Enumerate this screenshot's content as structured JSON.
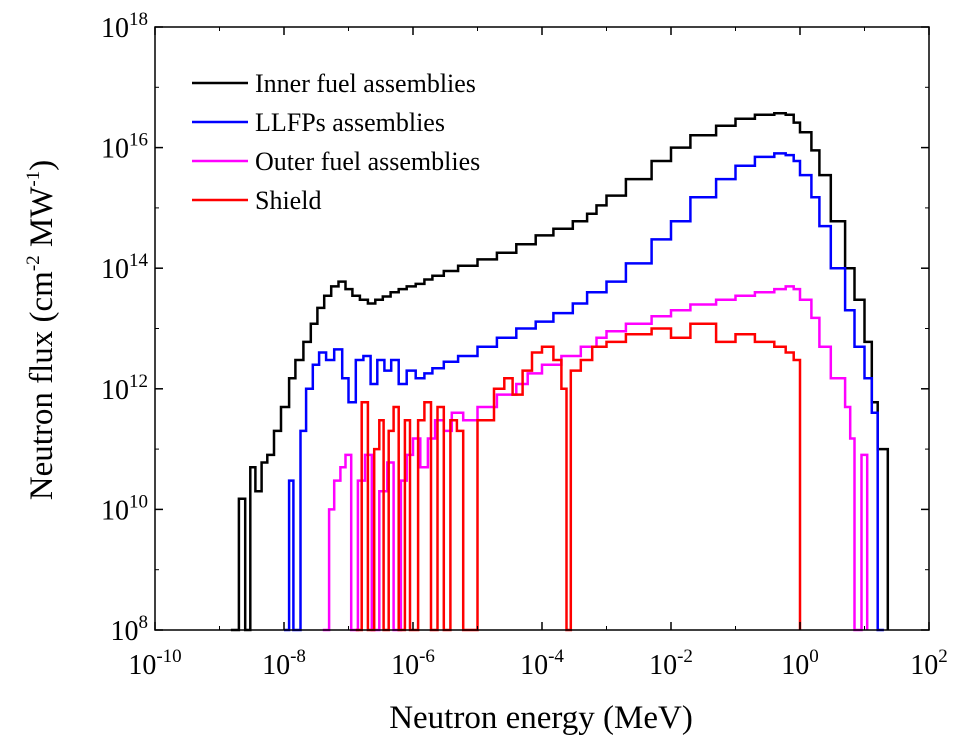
{
  "chart_data": {
    "type": "line",
    "xlabel": "Neutron energy (MeV)",
    "ylabel": "Neutron flux (cm⁻² MW⁻¹)",
    "ylabel_parts": {
      "a": "Neutron flux (cm",
      "exp1": "-2",
      "b": " MW",
      "exp2": "-1",
      "c": ")"
    },
    "xscale": "log",
    "yscale": "log",
    "xlim": [
      1e-10,
      100
    ],
    "ylim": [
      100000000.0,
      1e+18
    ],
    "x_ticks": [
      {
        "base": "10",
        "exp": "-10",
        "value": 1e-10
      },
      {
        "base": "10",
        "exp": "-8",
        "value": 1e-08
      },
      {
        "base": "10",
        "exp": "-6",
        "value": 1e-06
      },
      {
        "base": "10",
        "exp": "-4",
        "value": 0.0001
      },
      {
        "base": "10",
        "exp": "-2",
        "value": 0.01
      },
      {
        "base": "10",
        "exp": "0",
        "value": 1
      },
      {
        "base": "10",
        "exp": "2",
        "value": 100
      }
    ],
    "y_ticks": [
      {
        "base": "10",
        "exp": "8",
        "value": 100000000.0
      },
      {
        "base": "10",
        "exp": "10",
        "value": 10000000000.0
      },
      {
        "base": "10",
        "exp": "12",
        "value": 1000000000000.0
      },
      {
        "base": "10",
        "exp": "14",
        "value": 100000000000000.0
      },
      {
        "base": "10",
        "exp": "16",
        "value": 1e+16
      },
      {
        "base": "10",
        "exp": "18",
        "value": 1e+18
      }
    ],
    "grid": false,
    "legend_position": "top-left",
    "series": [
      {
        "name": "Inner fuel assemblies",
        "color": "#000000",
        "x": [
          1.5e-09,
          2e-09,
          2.5e-09,
          3e-09,
          3.6e-09,
          4.5e-09,
          5.5e-09,
          7e-09,
          9e-09,
          1.2e-08,
          1.5e-08,
          2e-08,
          2.6e-08,
          3.3e-08,
          4.2e-08,
          5.4e-08,
          7e-08,
          9e-08,
          1.15e-07,
          1.5e-07,
          2e-07,
          2.6e-07,
          3.4e-07,
          4.5e-07,
          6e-07,
          8e-07,
          1.1e-06,
          1.5e-06,
          2e-06,
          3e-06,
          5e-06,
          1e-05,
          2e-05,
          4e-05,
          8e-05,
          0.00015,
          0.0003,
          0.0005,
          0.0007,
          0.001,
          0.002,
          0.005,
          0.01,
          0.02,
          0.05,
          0.1,
          0.2,
          0.4,
          0.6,
          0.8,
          1,
          1.5,
          2,
          3,
          5,
          7,
          10,
          13,
          16,
          20,
          23
        ],
        "y": [
          100000000.0,
          15000000000.0,
          100000000.0,
          50000000000.0,
          20000000000.0,
          60000000000.0,
          80000000000.0,
          200000000000.0,
          500000000000.0,
          1500000000000.0,
          3000000000000.0,
          6000000000000.0,
          12000000000000.0,
          22000000000000.0,
          35000000000000.0,
          50000000000000.0,
          60000000000000.0,
          45000000000000.0,
          35000000000000.0,
          30000000000000.0,
          26000000000000.0,
          30000000000000.0,
          34000000000000.0,
          40000000000000.0,
          45000000000000.0,
          50000000000000.0,
          55000000000000.0,
          65000000000000.0,
          75000000000000.0,
          90000000000000.0,
          110000000000000.0,
          140000000000000.0,
          180000000000000.0,
          250000000000000.0,
          350000000000000.0,
          450000000000000.0,
          600000000000000.0,
          800000000000000.0,
          1100000000000000.0,
          1600000000000000.0,
          3000000000000000.0,
          6000000000000000.0,
          1e+16,
          1.6e+16,
          2.3e+16,
          3e+16,
          3.5e+16,
          3.7e+16,
          3.5e+16,
          2.6e+16,
          1.8e+16,
          9000000000000000.0,
          3500000000000000.0,
          600000000000000.0,
          100000000000000.0,
          30000000000000.0,
          6000000000000.0,
          600000000000.0,
          100000000000.0,
          100000000000.0,
          100000000.0
        ]
      },
      {
        "name": "LLFPs assemblies",
        "color": "#0000ff",
        "x": [
          1e-08,
          1.2e-08,
          1.4e-08,
          1.8e-08,
          2.2e-08,
          2.8e-08,
          3.5e-08,
          4.5e-08,
          6e-08,
          8e-08,
          1e-07,
          1.3e-07,
          1.7e-07,
          2.2e-07,
          2.8e-07,
          3.6e-07,
          4.6e-07,
          6e-07,
          8e-07,
          1.1e-06,
          1.5e-06,
          2e-06,
          3e-06,
          5e-06,
          1e-05,
          2e-05,
          4e-05,
          8e-05,
          0.00015,
          0.0003,
          0.0005,
          0.001,
          0.002,
          0.005,
          0.01,
          0.02,
          0.05,
          0.1,
          0.2,
          0.4,
          0.6,
          0.8,
          1,
          1.5,
          2,
          3,
          5,
          7,
          10,
          13,
          16,
          20
        ],
        "y": [
          100000000.0,
          30000000000.0,
          100000000.0,
          200000000000.0,
          1000000000000.0,
          2500000000000.0,
          4000000000000.0,
          3000000000000.0,
          4500000000000.0,
          1500000000000.0,
          600000000000.0,
          3000000000000.0,
          3500000000000.0,
          1200000000000.0,
          3000000000000.0,
          2000000000000.0,
          3000000000000.0,
          1200000000000.0,
          2000000000000.0,
          1500000000000.0,
          1800000000000.0,
          2200000000000.0,
          2800000000000.0,
          3500000000000.0,
          5000000000000.0,
          7000000000000.0,
          10000000000000.0,
          13000000000000.0,
          18000000000000.0,
          26000000000000.0,
          40000000000000.0,
          60000000000000.0,
          120000000000000.0,
          300000000000000.0,
          600000000000000.0,
          1500000000000000.0,
          3000000000000000.0,
          5000000000000000.0,
          7000000000000000.0,
          8000000000000000.0,
          7500000000000000.0,
          6000000000000000.0,
          3500000000000000.0,
          1500000000000000.0,
          500000000000000.0,
          100000000000000.0,
          20000000000000.0,
          5000000000000.0,
          1500000000000.0,
          400000000000.0,
          100000000.0,
          100000000.0
        ]
      },
      {
        "name": "Outer fuel assemblies",
        "color": "#ff00ff",
        "x": [
          4e-08,
          5e-08,
          6e-08,
          7.5e-08,
          9e-08,
          1.1e-07,
          1.4e-07,
          1.8e-07,
          2.3e-07,
          3e-07,
          4e-07,
          5e-07,
          6.5e-07,
          8e-07,
          1e-06,
          1.3e-06,
          1.7e-06,
          2.2e-06,
          3e-06,
          4e-06,
          6e-06,
          1e-05,
          2e-05,
          4e-05,
          6e-05,
          0.0001,
          0.0002,
          0.0004,
          0.0007,
          0.001,
          0.002,
          0.005,
          0.01,
          0.02,
          0.05,
          0.1,
          0.2,
          0.4,
          0.6,
          0.8,
          1,
          1.5,
          2,
          3,
          5,
          6,
          7,
          9,
          11
        ],
        "y": [
          100000000.0,
          10000000000.0,
          30000000000.0,
          50000000000.0,
          80000000000.0,
          100000000.0,
          30000000000.0,
          80000000000.0,
          100000000.0,
          20000000000.0,
          60000000000.0,
          100000000.0,
          30000000000.0,
          80000000000.0,
          150000000000.0,
          50000000000.0,
          150000000000.0,
          300000000000.0,
          200000000000.0,
          400000000000.0,
          300000000000.0,
          500000000000.0,
          800000000000.0,
          1200000000000.0,
          1800000000000.0,
          2500000000000.0,
          3500000000000.0,
          5000000000000.0,
          7000000000000.0,
          9000000000000.0,
          12000000000000.0,
          16000000000000.0,
          20000000000000.0,
          25000000000000.0,
          30000000000000.0,
          35000000000000.0,
          40000000000000.0,
          45000000000000.0,
          50000000000000.0,
          45000000000000.0,
          30000000000000.0,
          15000000000000.0,
          5000000000000.0,
          1500000000000.0,
          500000000000.0,
          150000000000.0,
          100000000.0,
          80000000000.0,
          100000000.0
        ]
      },
      {
        "name": "Shield",
        "color": "#ff0000",
        "x": [
          1.3e-07,
          1.6e-07,
          2e-07,
          2.5e-07,
          3e-07,
          3.5e-07,
          4.2e-07,
          5e-07,
          6e-07,
          7.5e-07,
          9e-07,
          1.2e-06,
          1.5e-06,
          1.9e-06,
          2.4e-06,
          3e-06,
          3.8e-06,
          4.8e-06,
          6e-06,
          1e-05,
          1.8e-05,
          2.6e-05,
          3.5e-05,
          5e-05,
          7e-05,
          0.0001,
          0.00015,
          0.0002,
          0.00024,
          0.00028,
          0.0004,
          0.0006,
          0.001,
          0.002,
          0.005,
          0.01,
          0.02,
          0.05,
          0.1,
          0.2,
          0.4,
          0.6,
          0.8,
          1
        ],
        "y": [
          100000000.0,
          600000000000.0,
          100000000.0,
          100000000000.0,
          300000000000.0,
          100000000.0,
          200000000000.0,
          500000000000.0,
          100000000.0,
          300000000000.0,
          100000000.0,
          300000000000.0,
          600000000000.0,
          100000000.0,
          500000000000.0,
          100000000.0,
          300000000000.0,
          200000000000.0,
          100000000.0,
          300000000000.0,
          1000000000000.0,
          1500000000000.0,
          800000000000.0,
          2000000000000.0,
          4000000000000.0,
          5000000000000.0,
          3000000000000.0,
          1000000000000.0,
          100000000.0,
          2000000000000.0,
          3000000000000.0,
          5000000000000.0,
          6000000000000.0,
          8000000000000.0,
          10000000000000.0,
          7000000000000.0,
          12000000000000.0,
          6000000000000.0,
          8000000000000.0,
          6000000000000.0,
          5000000000000.0,
          4000000000000.0,
          3000000000000.0,
          100000000.0
        ]
      }
    ]
  }
}
